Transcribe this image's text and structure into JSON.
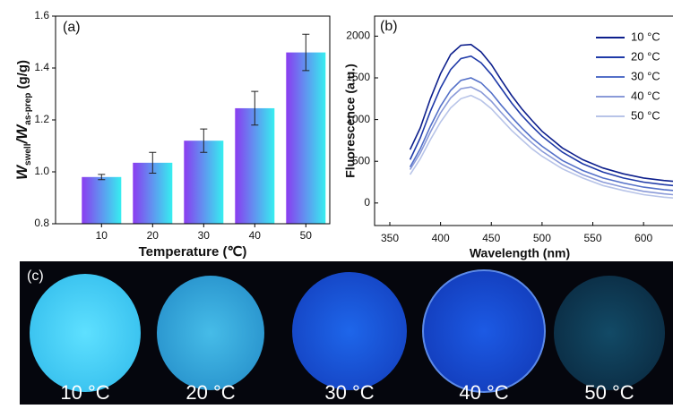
{
  "chart_data": [
    {
      "type": "bar",
      "panel_label": "(a)",
      "x_label": "Temperature (℃)",
      "y_label_parts": [
        "W",
        "swell",
        "/W",
        "as-prep",
        " (g/g)"
      ],
      "categories": [
        "10",
        "20",
        "30",
        "40",
        "50"
      ],
      "values": [
        0.98,
        1.035,
        1.12,
        1.245,
        1.46
      ],
      "errors": [
        0.01,
        0.04,
        0.045,
        0.065,
        0.07
      ],
      "gradient": [
        "#8a3cf0",
        "#36eef0"
      ],
      "ylim": [
        0.8,
        1.6
      ],
      "yticks": [
        0.8,
        {
          "value": 1,
          "label": "1.0"
        },
        1.2,
        1.4,
        1.6
      ]
    },
    {
      "type": "line",
      "panel_label": "(b)",
      "x_label": "Wavelength (nm)",
      "y_label": "Fluorescence (a.u.)",
      "x": [
        370,
        380,
        390,
        400,
        410,
        420,
        430,
        440,
        450,
        460,
        470,
        480,
        490,
        500,
        520,
        540,
        560,
        580,
        600,
        620,
        629
      ],
      "series": [
        {
          "name": "10 °C",
          "color": "#0d1f8c",
          "values": [
            640,
            900,
            1250,
            1550,
            1780,
            1890,
            1900,
            1810,
            1660,
            1470,
            1290,
            1130,
            990,
            860,
            660,
            520,
            420,
            350,
            300,
            270,
            260
          ]
        },
        {
          "name": "20 °C",
          "color": "#1f3aa8",
          "values": [
            520,
            780,
            1100,
            1380,
            1600,
            1730,
            1760,
            1680,
            1540,
            1370,
            1200,
            1050,
            920,
            800,
            610,
            470,
            370,
            300,
            250,
            220,
            210
          ]
        },
        {
          "name": "30 °C",
          "color": "#5470c8",
          "values": [
            430,
            650,
            920,
            1160,
            1350,
            1470,
            1500,
            1440,
            1320,
            1170,
            1030,
            900,
            780,
            680,
            510,
            390,
            300,
            240,
            190,
            160,
            150
          ]
        },
        {
          "name": "40 °C",
          "color": "#8a9ad8",
          "values": [
            400,
            600,
            850,
            1080,
            1260,
            1370,
            1390,
            1330,
            1220,
            1080,
            950,
            830,
            720,
            620,
            460,
            340,
            250,
            190,
            140,
            110,
            100
          ]
        },
        {
          "name": "50 °C",
          "color": "#b8c4e8",
          "values": [
            340,
            530,
            760,
            970,
            1140,
            1250,
            1290,
            1230,
            1130,
            1000,
            870,
            760,
            650,
            560,
            410,
            300,
            210,
            150,
            100,
            70,
            60
          ]
        }
      ],
      "xlim": [
        335,
        629
      ],
      "xticks": [
        350,
        400,
        450,
        500,
        550,
        600
      ],
      "ylim": [
        -270,
        2240
      ],
      "yticks": [
        0,
        500,
        1000,
        1500,
        2000
      ],
      "legend": "upper right"
    }
  ],
  "photo": {
    "label": "(c)",
    "captions": [
      "10 °C",
      "20 °C",
      "30 °C",
      "40 °C",
      "50 °C"
    ]
  }
}
